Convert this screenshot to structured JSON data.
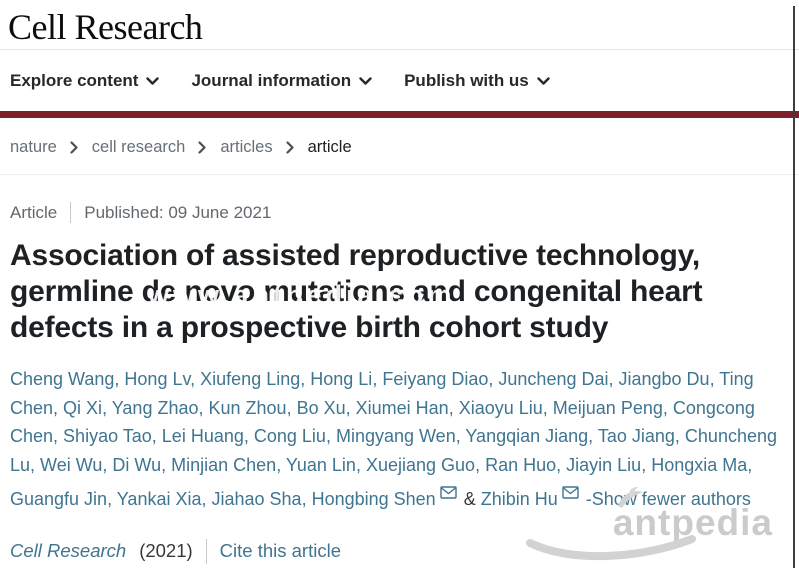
{
  "journal": {
    "title": "Cell Research"
  },
  "nav": {
    "items": [
      {
        "label": "Explore content"
      },
      {
        "label": "Journal information"
      },
      {
        "label": "Publish with us"
      }
    ]
  },
  "breadcrumb": {
    "items": [
      "nature",
      "cell research",
      "articles",
      "article"
    ]
  },
  "article_meta": {
    "type_label": "Article",
    "published_label": "Published: 09 June 2021"
  },
  "article": {
    "title": "Association of assisted reproductive technology, germline de novo mutations and congenital heart defects in a prospective birth cohort study",
    "title_lines": [
      "Association of assisted reproductive technology,",
      "germline de novo mutations and congenital heart",
      "defects in a prospective birth cohort study"
    ],
    "overlay_watermark": "www.antpedia.com"
  },
  "authors": {
    "names": [
      "Cheng Wang",
      "Hong Lv",
      "Xiufeng Ling",
      "Hong Li",
      "Feiyang Diao",
      "Juncheng Dai",
      "Jiangbo Du",
      "Ting Chen",
      "Qi Xi",
      "Yang Zhao",
      "Kun Zhou",
      "Bo Xu",
      "Xiumei Han",
      "Xiaoyu Liu",
      "Meijuan Peng",
      "Congcong Chen",
      "Shiyao Tao",
      "Lei Huang",
      "Cong Liu",
      "Mingyang Wen",
      "Yangqian Jiang",
      "Tao Jiang",
      "Chuncheng Lu",
      "Wei Wu",
      "Di Wu",
      "Minjian Chen",
      "Yuan Lin",
      "Xuejiang Guo",
      "Ran Huo",
      "Jiayin Liu",
      "Hongxia Ma",
      "Guangfu Jin",
      "Yankai Xia",
      "Jiahao Sha"
    ],
    "corresponding": [
      "Hongbing Shen",
      "Zhibin Hu"
    ],
    "ampersand": "&",
    "show_fewer_label": "-Show fewer authors"
  },
  "citation": {
    "journal": "Cell Research",
    "year": "(2021)",
    "cite_link": "Cite this article"
  },
  "watermark": {
    "logo_text": "antpedia"
  },
  "icons": {
    "nav_chevron": "chevron-down",
    "breadcrumb_separator": "chevron-right",
    "corresponding_author": "envelope"
  },
  "colors": {
    "accent_bar": "#7c202b",
    "link_teal": "#3f7590",
    "watermark_gray": "#cbcbcb"
  }
}
